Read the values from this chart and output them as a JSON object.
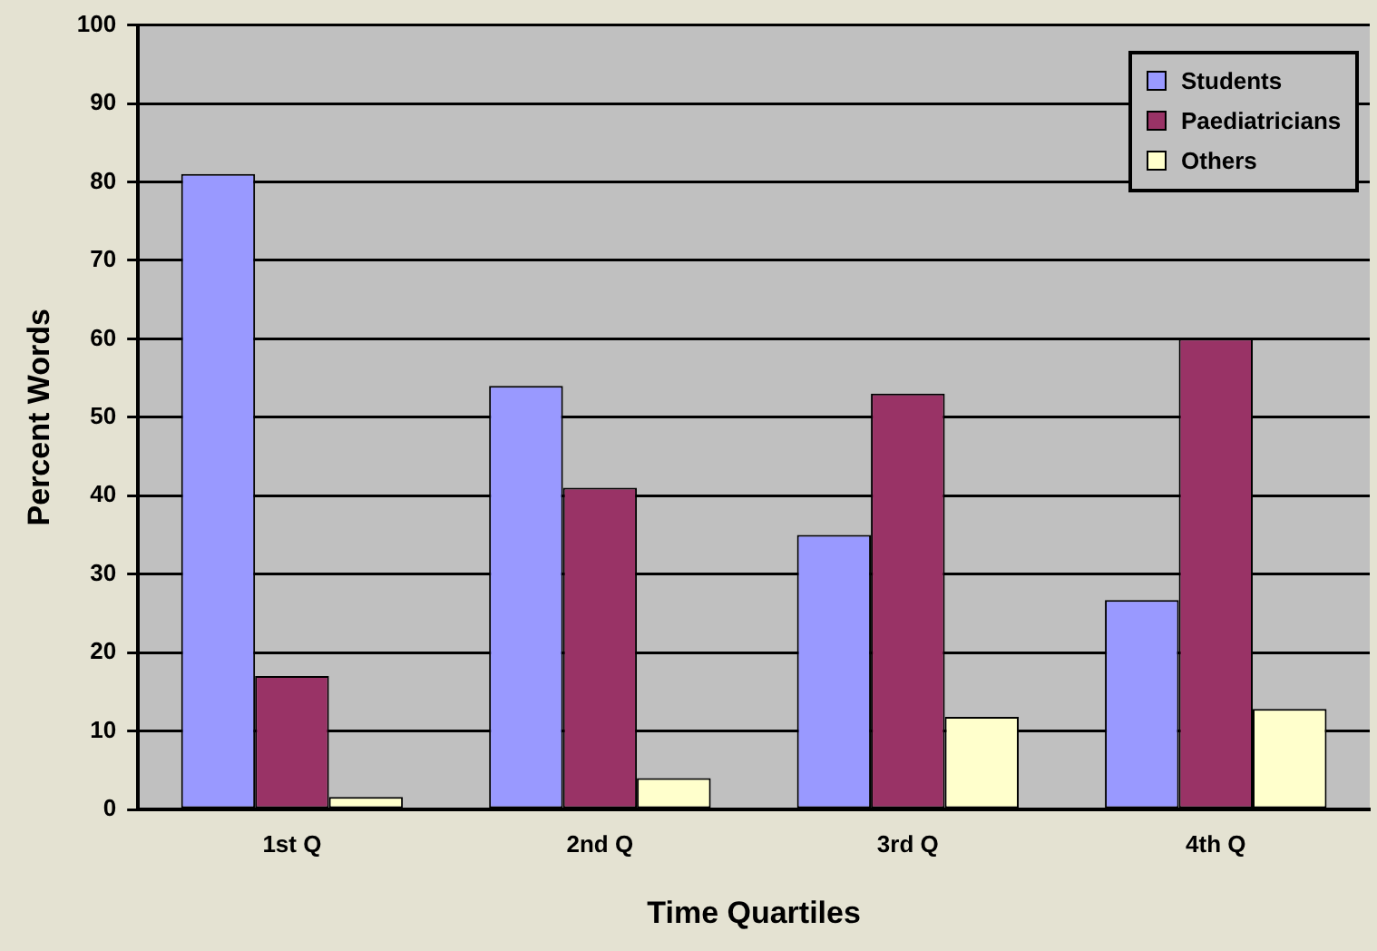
{
  "chart_data": {
    "type": "bar",
    "xlabel": "Time Quartiles",
    "ylabel": "Percent Words",
    "categories": [
      "1st Q",
      "2nd Q",
      "3rd Q",
      "4th Q"
    ],
    "series": [
      {
        "name": "Students",
        "color": "#9999ff",
        "values": [
          81,
          54,
          35,
          26.7
        ]
      },
      {
        "name": "Paediatricians",
        "color": "#993366",
        "values": [
          17,
          41,
          53,
          60
        ]
      },
      {
        "name": "Others",
        "color": "#ffffcc",
        "values": [
          1.6,
          4,
          11.8,
          12.8
        ]
      }
    ],
    "ylim": [
      0,
      100
    ],
    "yticks": [
      0,
      10,
      20,
      30,
      40,
      50,
      60,
      70,
      80,
      90,
      100
    ],
    "grid": "y",
    "legend": "top right"
  }
}
